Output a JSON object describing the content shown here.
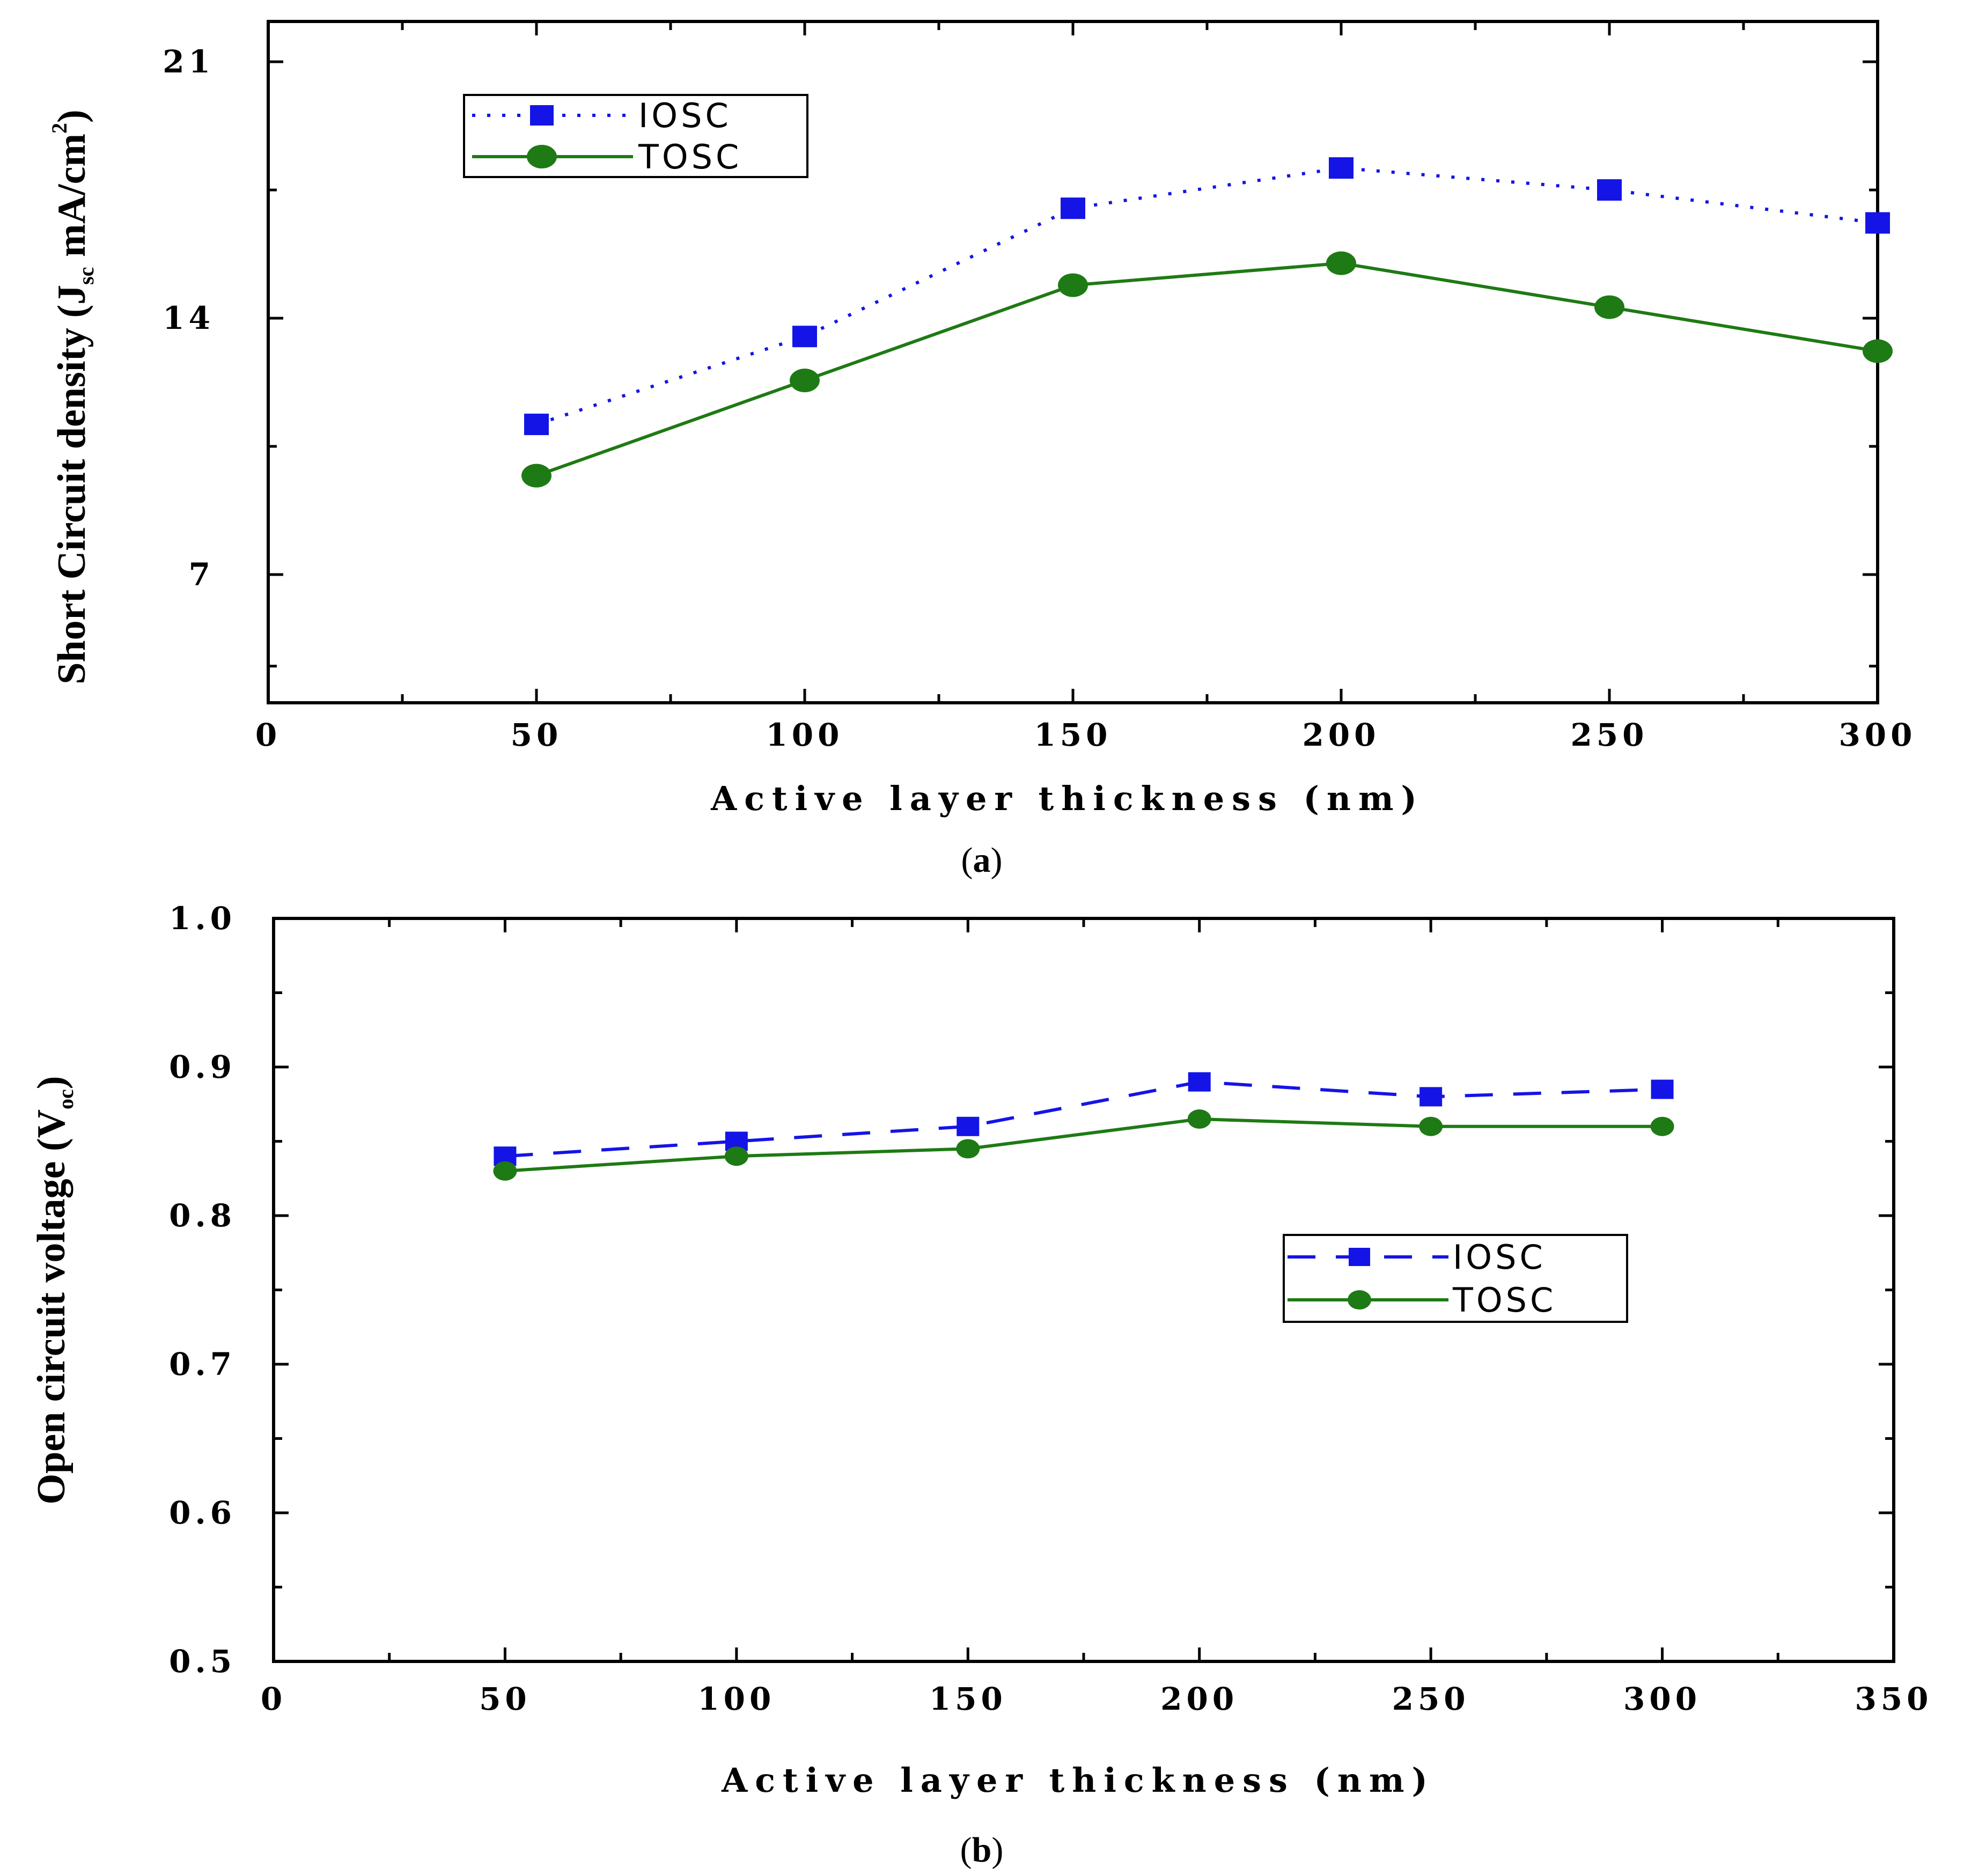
{
  "colors": {
    "iosc": "#1414e6",
    "tosc": "#1e7a14",
    "axis": "#000000"
  },
  "chart_data": [
    {
      "id": "a",
      "type": "line",
      "caption": "a",
      "xlabel": "Active layer thickness (nm)",
      "ylabel": {
        "main": "Short Circuit density (J",
        "sub": "sc",
        "rest": " mA/cm",
        "sup": "2",
        "close": ")"
      },
      "xlim": [
        0,
        300
      ],
      "ylim": [
        3.5,
        22.1
      ],
      "xticks": [
        0,
        50,
        100,
        150,
        200,
        250,
        300
      ],
      "xtick_labels": [
        "0",
        "50",
        "100",
        "150",
        "200",
        "250",
        "300"
      ],
      "yticks": [
        7,
        14,
        21
      ],
      "ytick_labels": [
        "7",
        "14",
        "21"
      ],
      "y_minor_ticks": [
        4.5,
        10.5,
        17.5
      ],
      "x": [
        50,
        100,
        150,
        200,
        250,
        300
      ],
      "series": [
        {
          "name": "IOSC",
          "style": "dotted-square",
          "values": [
            11.1,
            13.5,
            17.0,
            18.1,
            17.5,
            16.6
          ]
        },
        {
          "name": "TOSC",
          "style": "solid-circle",
          "values": [
            9.7,
            12.3,
            14.9,
            15.5,
            14.3,
            13.1
          ]
        }
      ],
      "legend": {
        "placement": "top-left",
        "entries": [
          "IOSC",
          "TOSC"
        ]
      }
    },
    {
      "id": "b",
      "type": "line",
      "caption": "b",
      "xlabel": "Active layer thickness (nm)",
      "ylabel": {
        "main": "Open circuit voltage (V",
        "sub": "oc",
        "rest": "",
        "sup": "",
        "close": ")"
      },
      "xlim": [
        0,
        350
      ],
      "ylim": [
        0.5,
        1.0
      ],
      "xticks": [
        0,
        50,
        100,
        150,
        200,
        250,
        300,
        350
      ],
      "xtick_labels": [
        "0",
        "50",
        "100",
        "150",
        "200",
        "250",
        "300",
        "350"
      ],
      "yticks": [
        0.5,
        0.6,
        0.7,
        0.8,
        0.9,
        1.0
      ],
      "ytick_labels": [
        "0.5",
        "0.6",
        "0.7",
        "0.8",
        "0.9",
        "1.0"
      ],
      "y_minor_ticks": [
        0.55,
        0.65,
        0.75,
        0.85,
        0.95
      ],
      "x": [
        50,
        100,
        150,
        200,
        250,
        300
      ],
      "series": [
        {
          "name": "IOSC",
          "style": "dashed-square",
          "values": [
            0.84,
            0.85,
            0.86,
            0.89,
            0.88,
            0.885
          ]
        },
        {
          "name": "TOSC",
          "style": "solid-circle",
          "values": [
            0.83,
            0.84,
            0.845,
            0.865,
            0.86,
            0.86
          ]
        }
      ],
      "legend": {
        "placement": "center-right",
        "entries": [
          "IOSC",
          "TOSC"
        ]
      }
    }
  ]
}
